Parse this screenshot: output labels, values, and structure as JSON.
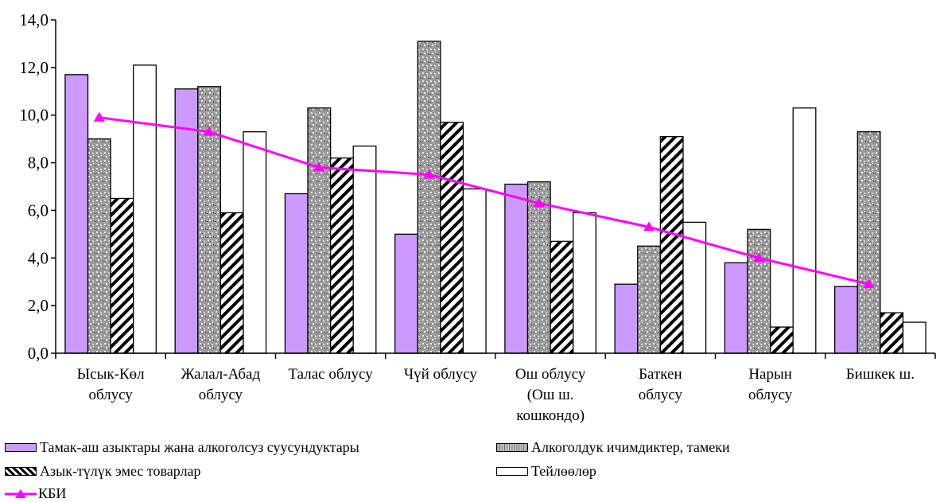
{
  "chart_data": {
    "type": "bar",
    "categories": [
      [
        "Ысык-Көл",
        "облусу"
      ],
      [
        "Жалал-Абад",
        "облусу"
      ],
      [
        "Талас облусу"
      ],
      [
        "Чүй облусу"
      ],
      [
        "Ош облусу",
        "(Ош ш.",
        "кошкондо)"
      ],
      [
        "Баткен",
        "облусу"
      ],
      [
        "Нарын",
        "облусу"
      ],
      [
        "Бишкек ш."
      ]
    ],
    "series": [
      {
        "name": "Тамак-аш азыктары жана алкоголсуз суусундуктары",
        "kind": "bar",
        "style": "solid",
        "color": "#cc99ff",
        "values": [
          11.7,
          11.1,
          6.7,
          5.0,
          7.1,
          2.9,
          3.8,
          2.8
        ]
      },
      {
        "name": "Алкоголдук ичимдиктер, тамеки",
        "kind": "bar",
        "style": "granite",
        "color": "#9a9a9a",
        "values": [
          9.0,
          11.2,
          10.3,
          13.1,
          7.2,
          4.5,
          5.2,
          9.3
        ]
      },
      {
        "name": "Азык-түлүк эмес товарлар",
        "kind": "bar",
        "style": "hatch",
        "color": "#000000",
        "values": [
          6.5,
          5.9,
          8.2,
          9.7,
          4.7,
          9.1,
          1.1,
          1.7
        ]
      },
      {
        "name": "Тейлөөлөр",
        "kind": "bar",
        "style": "empty",
        "color": "#ffffff",
        "values": [
          12.1,
          9.3,
          8.7,
          6.9,
          5.9,
          5.5,
          10.3,
          1.3
        ]
      },
      {
        "name": "КБИ",
        "kind": "line",
        "color": "#ff00ff",
        "marker": "triangle",
        "values": [
          9.9,
          9.3,
          7.8,
          7.5,
          6.3,
          5.3,
          4.0,
          2.9
        ]
      }
    ],
    "ylim": [
      0,
      14
    ],
    "yticks": [
      "0,0",
      "2,0",
      "4,0",
      "6,0",
      "8,0",
      "10,0",
      "12,0",
      "14,0"
    ],
    "grid": false,
    "legend_position": "bottom"
  }
}
